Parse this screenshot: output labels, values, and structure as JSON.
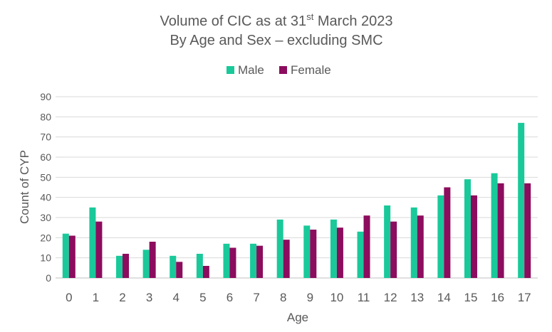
{
  "chart_data": {
    "type": "bar",
    "title_line1_main": "Volume of CIC as at 31",
    "title_line1_sup": "st",
    "title_line1_tail": " March 2023",
    "title_line2": "By Age and Sex – excluding SMC",
    "xlabel": "Age",
    "ylabel": "Count of CYP",
    "ylim": [
      0,
      90
    ],
    "yticks": [
      "0",
      "10",
      "20",
      "30",
      "40",
      "50",
      "60",
      "70",
      "80",
      "90"
    ],
    "grid": true,
    "legend_position": "top",
    "categories": [
      "0",
      "1",
      "2",
      "3",
      "4",
      "5",
      "6",
      "7",
      "8",
      "9",
      "10",
      "11",
      "12",
      "13",
      "14",
      "15",
      "16",
      "17"
    ],
    "series": [
      {
        "name": "Male",
        "color": "#19c99a",
        "values": [
          22,
          35,
          11,
          14,
          11,
          12,
          17,
          17,
          29,
          26,
          29,
          23,
          36,
          35,
          41,
          49,
          52,
          77
        ]
      },
      {
        "name": "Female",
        "color": "#8c0c5e",
        "values": [
          21,
          28,
          12,
          18,
          8,
          6,
          15,
          16,
          19,
          24,
          25,
          31,
          28,
          31,
          45,
          41,
          47,
          47
        ]
      }
    ]
  }
}
